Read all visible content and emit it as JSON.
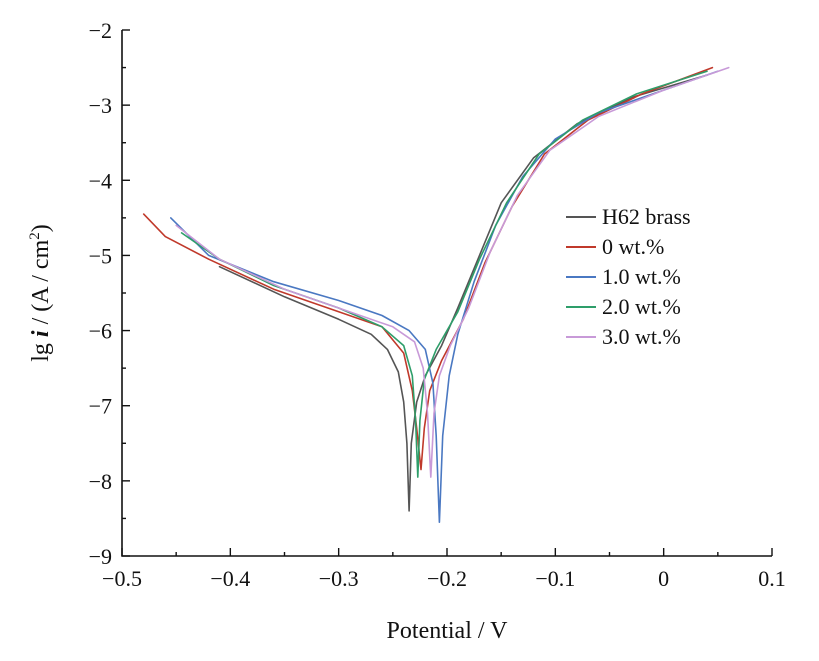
{
  "chart_data": {
    "type": "line",
    "title": "",
    "xlabel": "Potential / V",
    "ylabel_parts": {
      "prefix": "lg ",
      "italic": "i",
      "middle": " / (A / cm",
      "sup": "2",
      "suffix": ")"
    },
    "xlim": [
      -0.5,
      0.1
    ],
    "ylim": [
      -9,
      -2
    ],
    "xticks": [
      -0.5,
      -0.4,
      -0.3,
      -0.2,
      -0.1,
      0,
      0.1
    ],
    "xtick_labels": [
      "−0.5",
      "−0.4",
      "−0.3",
      "−0.2",
      "−0.1",
      "0",
      "0.1"
    ],
    "yticks": [
      -9,
      -8,
      -7,
      -6,
      -5,
      -4,
      -3,
      -2
    ],
    "ytick_labels": [
      "−9",
      "−8",
      "−7",
      "−6",
      "−5",
      "−4",
      "−3",
      "−2"
    ],
    "grid": false,
    "legend_position": "right",
    "series": [
      {
        "name": "H62 brass",
        "color": "#555555",
        "points": [
          [
            -0.41,
            -5.15
          ],
          [
            -0.35,
            -5.55
          ],
          [
            -0.3,
            -5.85
          ],
          [
            -0.27,
            -6.05
          ],
          [
            -0.255,
            -6.25
          ],
          [
            -0.245,
            -6.55
          ],
          [
            -0.24,
            -6.95
          ],
          [
            -0.237,
            -7.5
          ],
          [
            -0.235,
            -8.4
          ],
          [
            -0.233,
            -7.5
          ],
          [
            -0.228,
            -6.95
          ],
          [
            -0.22,
            -6.6
          ],
          [
            -0.205,
            -6.2
          ],
          [
            -0.19,
            -5.7
          ],
          [
            -0.17,
            -5.0
          ],
          [
            -0.15,
            -4.3
          ],
          [
            -0.12,
            -3.7
          ],
          [
            -0.08,
            -3.25
          ],
          [
            -0.03,
            -2.9
          ],
          [
            0.04,
            -2.6
          ]
        ]
      },
      {
        "name": "0 wt.%",
        "color": "#c0392b",
        "points": [
          [
            -0.48,
            -4.45
          ],
          [
            -0.46,
            -4.75
          ],
          [
            -0.42,
            -5.05
          ],
          [
            -0.36,
            -5.45
          ],
          [
            -0.3,
            -5.75
          ],
          [
            -0.26,
            -5.95
          ],
          [
            -0.24,
            -6.3
          ],
          [
            -0.232,
            -6.8
          ],
          [
            -0.228,
            -7.3
          ],
          [
            -0.224,
            -7.85
          ],
          [
            -0.221,
            -7.3
          ],
          [
            -0.216,
            -6.8
          ],
          [
            -0.205,
            -6.4
          ],
          [
            -0.185,
            -5.85
          ],
          [
            -0.165,
            -5.1
          ],
          [
            -0.14,
            -4.35
          ],
          [
            -0.11,
            -3.65
          ],
          [
            -0.07,
            -3.2
          ],
          [
            -0.02,
            -2.85
          ],
          [
            0.045,
            -2.5
          ]
        ]
      },
      {
        "name": "1.0 wt.%",
        "color": "#4a78c2",
        "points": [
          [
            -0.455,
            -4.5
          ],
          [
            -0.42,
            -5.0
          ],
          [
            -0.36,
            -5.35
          ],
          [
            -0.3,
            -5.6
          ],
          [
            -0.26,
            -5.8
          ],
          [
            -0.235,
            -6.0
          ],
          [
            -0.22,
            -6.25
          ],
          [
            -0.213,
            -6.7
          ],
          [
            -0.21,
            -7.4
          ],
          [
            -0.207,
            -8.55
          ],
          [
            -0.204,
            -7.4
          ],
          [
            -0.198,
            -6.6
          ],
          [
            -0.19,
            -6.05
          ],
          [
            -0.175,
            -5.35
          ],
          [
            -0.155,
            -4.6
          ],
          [
            -0.13,
            -3.95
          ],
          [
            -0.1,
            -3.45
          ],
          [
            -0.06,
            -3.1
          ],
          [
            0.0,
            -2.8
          ],
          [
            0.05,
            -2.55
          ]
        ]
      },
      {
        "name": "2.0 wt.%",
        "color": "#2e9e6a",
        "points": [
          [
            -0.445,
            -4.7
          ],
          [
            -0.41,
            -5.05
          ],
          [
            -0.36,
            -5.4
          ],
          [
            -0.3,
            -5.7
          ],
          [
            -0.26,
            -5.95
          ],
          [
            -0.24,
            -6.2
          ],
          [
            -0.232,
            -6.6
          ],
          [
            -0.229,
            -7.2
          ],
          [
            -0.227,
            -7.95
          ],
          [
            -0.225,
            -7.2
          ],
          [
            -0.221,
            -6.65
          ],
          [
            -0.21,
            -6.25
          ],
          [
            -0.19,
            -5.75
          ],
          [
            -0.17,
            -5.05
          ],
          [
            -0.145,
            -4.3
          ],
          [
            -0.115,
            -3.65
          ],
          [
            -0.075,
            -3.2
          ],
          [
            -0.025,
            -2.85
          ],
          [
            0.04,
            -2.55
          ]
        ]
      },
      {
        "name": "3.0 wt.%",
        "color": "#c89ad8",
        "points": [
          [
            -0.45,
            -4.6
          ],
          [
            -0.41,
            -5.05
          ],
          [
            -0.35,
            -5.45
          ],
          [
            -0.29,
            -5.75
          ],
          [
            -0.25,
            -5.95
          ],
          [
            -0.23,
            -6.15
          ],
          [
            -0.222,
            -6.5
          ],
          [
            -0.218,
            -7.1
          ],
          [
            -0.215,
            -7.95
          ],
          [
            -0.212,
            -7.1
          ],
          [
            -0.207,
            -6.6
          ],
          [
            -0.197,
            -6.2
          ],
          [
            -0.18,
            -5.7
          ],
          [
            -0.16,
            -4.95
          ],
          [
            -0.135,
            -4.2
          ],
          [
            -0.105,
            -3.6
          ],
          [
            -0.06,
            -3.15
          ],
          [
            0.0,
            -2.8
          ],
          [
            0.06,
            -2.5
          ]
        ]
      }
    ]
  }
}
